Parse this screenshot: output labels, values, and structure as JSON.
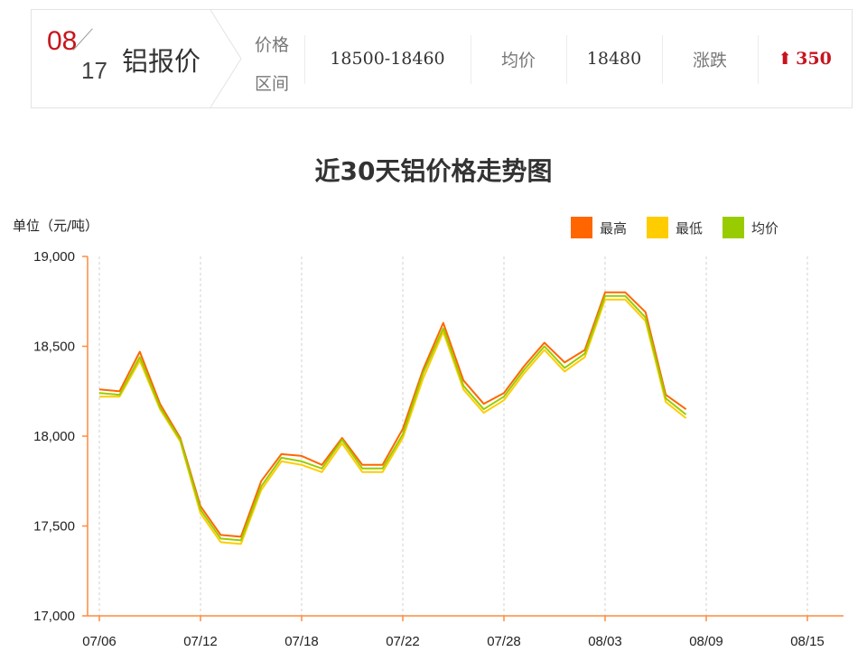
{
  "header": {
    "month": "08",
    "day": "17",
    "title": "铝报价",
    "range_label_line1": "价格",
    "range_label_line2": "区间",
    "range_value": "18500-18460",
    "avg_label": "均价",
    "avg_value": "18480",
    "change_label": "涨跌",
    "change_value": "350",
    "change_arrow": "⬆",
    "accent_color": "#c8141e"
  },
  "chart_data": {
    "type": "line",
    "title": "近30天铝价格走势图",
    "ylabel": "单位（元/吨）",
    "ylim": [
      17000,
      19000
    ],
    "yticks": [
      17000,
      17500,
      18000,
      18500,
      19000
    ],
    "ytick_labels": [
      "17,000",
      "17,500",
      "18,000",
      "18,500",
      "19,000"
    ],
    "x_tick_labels": [
      "07/06",
      "07/12",
      "07/18",
      "07/22",
      "07/28",
      "08/03",
      "08/09",
      "08/15"
    ],
    "x_tick_indices": [
      0,
      5,
      10,
      15,
      20,
      25,
      30,
      35
    ],
    "grid": "vertical-dashed",
    "legend_position": "top-right",
    "series": [
      {
        "name": "最高",
        "color": "#ff6600",
        "values": [
          18260,
          18250,
          18470,
          18180,
          17990,
          17610,
          17450,
          17440,
          17750,
          17900,
          17890,
          17840,
          17990,
          17840,
          17840,
          18040,
          18370,
          18630,
          18310,
          18180,
          18240,
          18390,
          18520,
          18410,
          18480,
          18800,
          18800,
          18690,
          18230,
          18150
        ]
      },
      {
        "name": "最低",
        "color": "#ffcc00",
        "values": [
          18220,
          18220,
          18420,
          18150,
          17970,
          17570,
          17410,
          17400,
          17700,
          17860,
          17840,
          17800,
          17960,
          17800,
          17800,
          17990,
          18320,
          18580,
          18260,
          18130,
          18200,
          18350,
          18480,
          18360,
          18440,
          18760,
          18760,
          18640,
          18190,
          18100
        ]
      },
      {
        "name": "均价",
        "color": "#99cc00",
        "values": [
          18240,
          18230,
          18440,
          18160,
          17980,
          17590,
          17430,
          17420,
          17720,
          17880,
          17860,
          17820,
          17980,
          17820,
          17820,
          18010,
          18350,
          18600,
          18280,
          18150,
          18220,
          18370,
          18500,
          18380,
          18460,
          18780,
          18780,
          18660,
          18210,
          18120
        ]
      }
    ]
  }
}
